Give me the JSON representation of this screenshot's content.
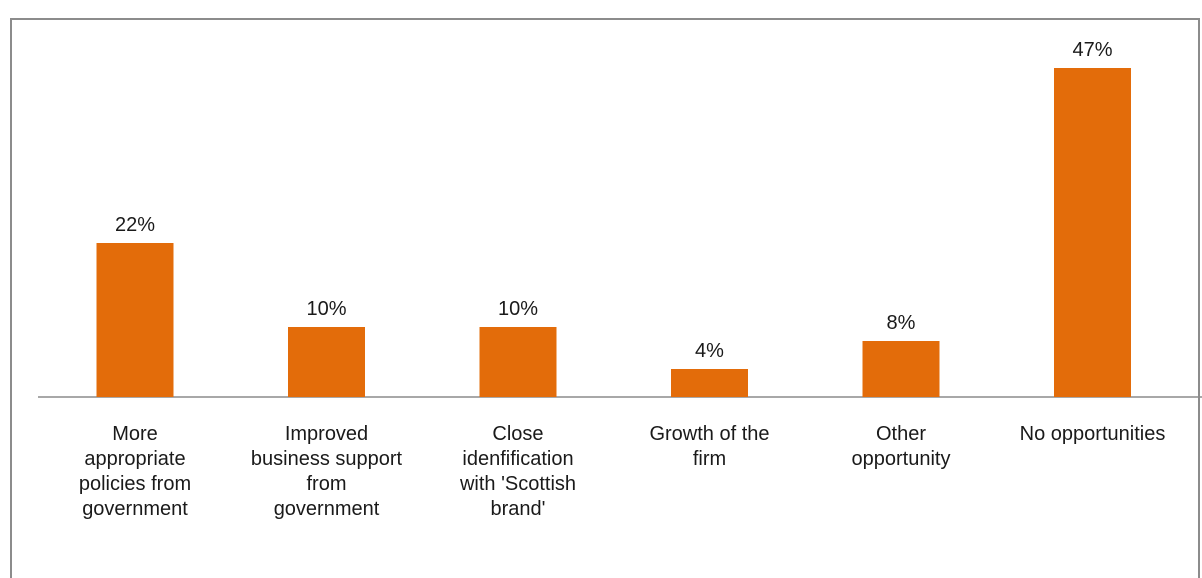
{
  "chart_data": {
    "type": "bar",
    "title": "",
    "xlabel": "",
    "ylabel": "",
    "categories": [
      [
        "More",
        "appropriate",
        "policies from",
        "government"
      ],
      [
        "Improved",
        "business support",
        "from",
        "government"
      ],
      [
        "Close",
        "idenfification",
        "with 'Scottish",
        "brand'"
      ],
      [
        "Growth of the",
        "firm"
      ],
      [
        "Other",
        "opportunity"
      ],
      [
        "No opportunities"
      ]
    ],
    "values": [
      22,
      10,
      10,
      4,
      8,
      47
    ],
    "value_labels": [
      "22%",
      "10%",
      "10%",
      "4%",
      "8%",
      "47%"
    ],
    "ylim": [
      0,
      50
    ],
    "grid": false,
    "legend": "none",
    "colors": {
      "bar": "#E36C0A",
      "axis": "#8c8c8c",
      "text": "#1a1a1a"
    }
  }
}
